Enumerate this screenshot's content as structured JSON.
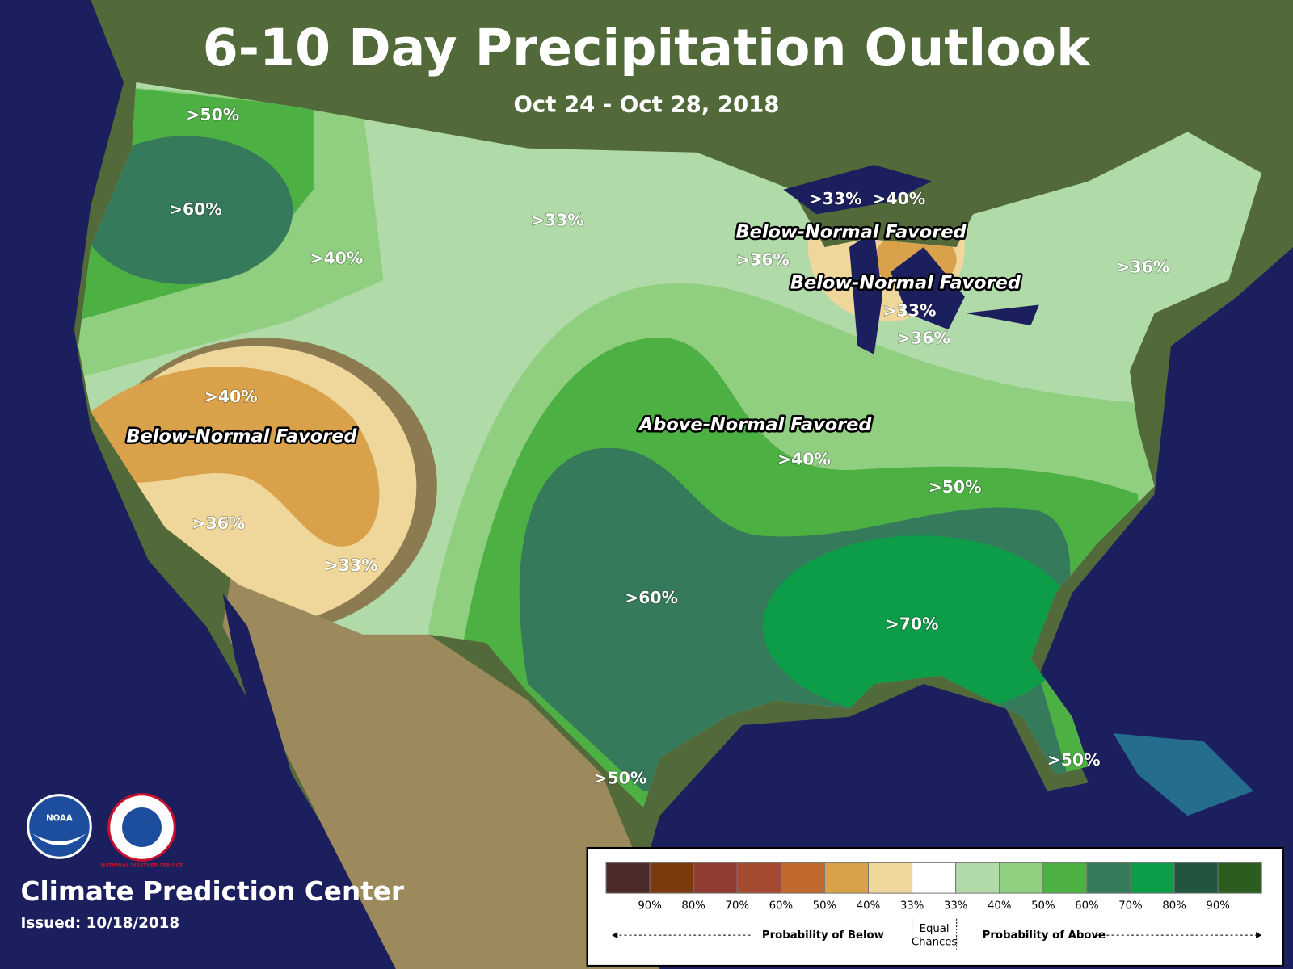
{
  "header": {
    "title": "6-10 Day Precipitation Outlook",
    "subtitle": "Oct 24 - Oct 28, 2018"
  },
  "map_labels": [
    ">50%",
    ">60%",
    ">40%",
    ">33%",
    ">36%",
    ">33%",
    ">40%",
    ">36%",
    ">33%",
    ">36%",
    ">40%",
    ">36%",
    ">33%",
    ">40%",
    ">50%",
    ">60%",
    ">70%",
    ">50%",
    ">50%"
  ],
  "region_labels": [
    "Below-Normal Favored",
    "Below-Normal Favored",
    "Below-Normal Favored",
    "Above-Normal Favored"
  ],
  "logos": {
    "noaa": "NOAA",
    "nws": "NATIONAL WEATHER SERVICE"
  },
  "footer": {
    "org": "Climate Prediction Center",
    "issued": "Issued: 10/18/2018"
  },
  "legend": {
    "colors": [
      "#4d2a2a",
      "#7a3a0e",
      "#8f3c32",
      "#a34a30",
      "#c06a30",
      "#d9a24a",
      "#efd69a",
      "#ffffff",
      "#b0dba8",
      "#8fcf7f",
      "#4cb043",
      "#357a5a",
      "#0d9c48",
      "#21553d",
      "#2c5d1f"
    ],
    "labels": [
      "90%",
      "80%",
      "70%",
      "60%",
      "50%",
      "40%",
      "33%",
      "33%",
      "40%",
      "50%",
      "60%",
      "70%",
      "80%",
      "90%"
    ],
    "below_caption": "Probability of Below",
    "equal_chances": [
      "Equal",
      "Chances"
    ],
    "above_caption": "Probability of Above"
  }
}
